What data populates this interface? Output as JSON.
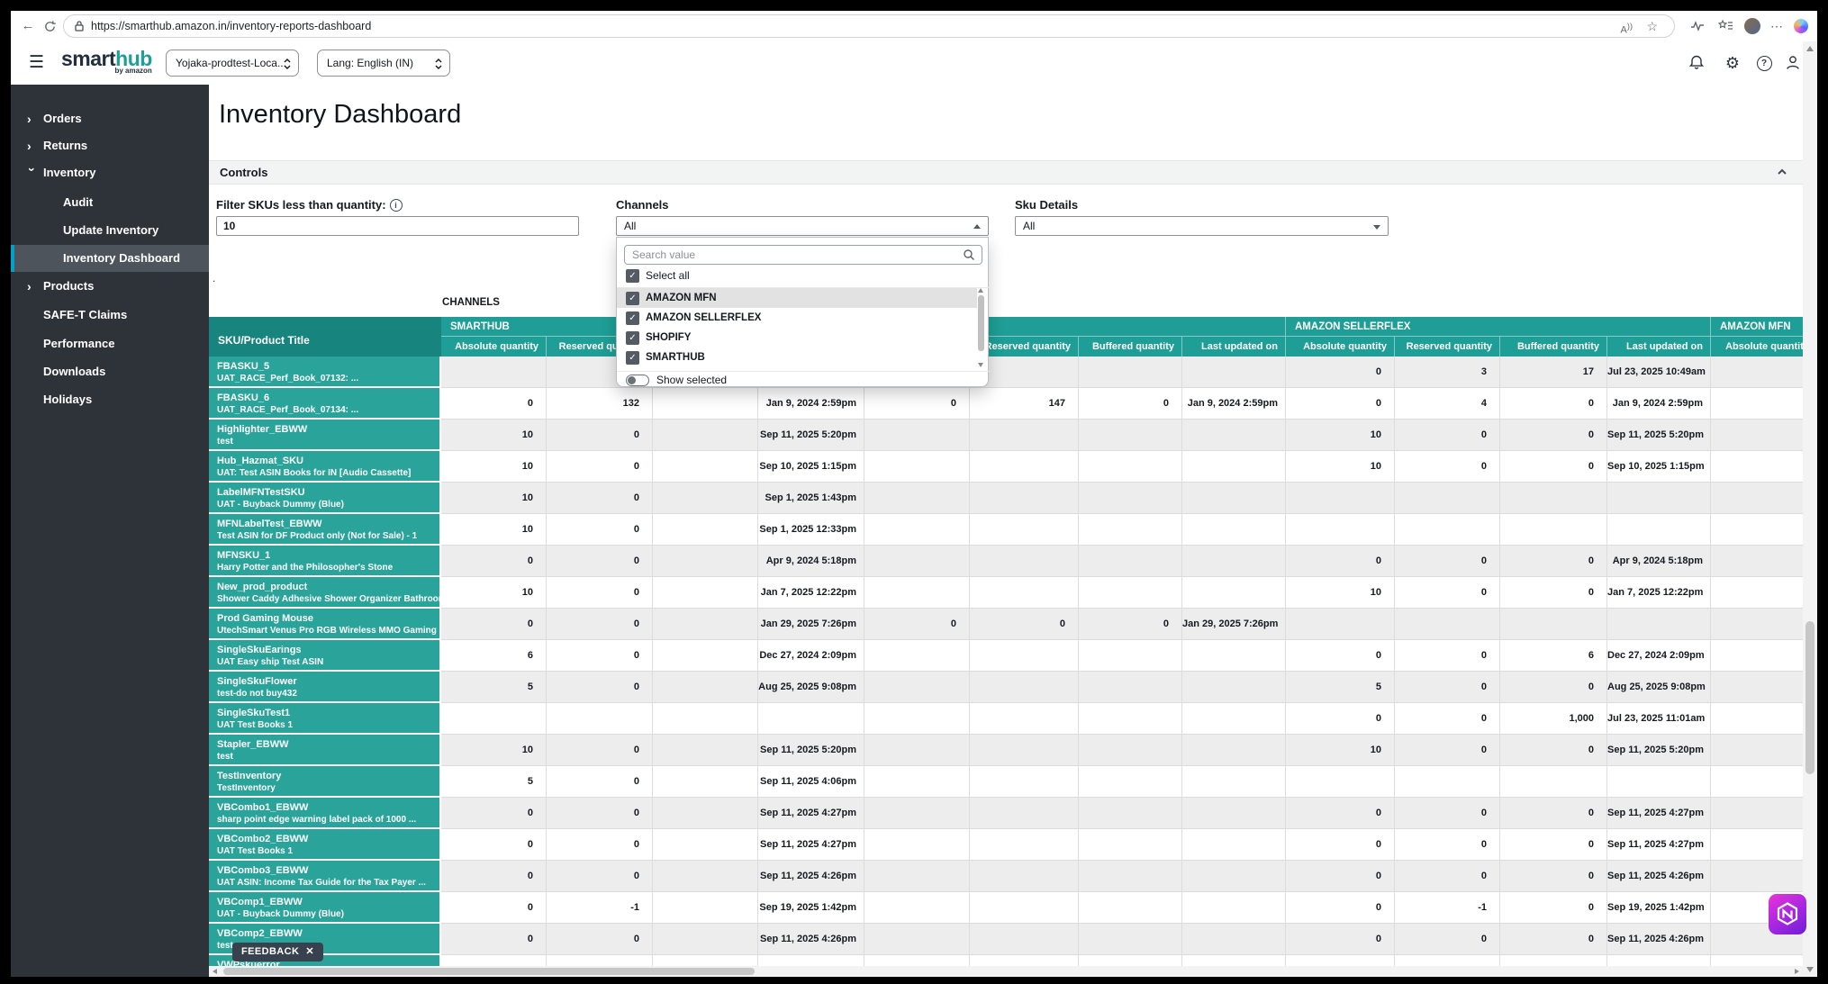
{
  "browser": {
    "url": "https://smarthub.amazon.in/inventory-reports-dashboard"
  },
  "app_header": {
    "logo": {
      "part1": "smart",
      "part2": "hub",
      "byline": "by amazon"
    },
    "account_selector": "Yojaka-prodtest-Loca...",
    "language_selector": "Lang: English (IN)"
  },
  "sidebar": {
    "items": [
      {
        "label": "Orders",
        "chevron": "collapsed",
        "level": 0,
        "selected": false
      },
      {
        "label": "Returns",
        "chevron": "collapsed",
        "level": 0,
        "selected": false
      },
      {
        "label": "Inventory",
        "chevron": "expanded",
        "level": 0,
        "selected": false
      },
      {
        "label": "Audit",
        "chevron": "none",
        "level": 1,
        "selected": false
      },
      {
        "label": "Update Inventory",
        "chevron": "none",
        "level": 1,
        "selected": false
      },
      {
        "label": "Inventory Dashboard",
        "chevron": "none",
        "level": 1,
        "selected": true
      },
      {
        "label": "Products",
        "chevron": "collapsed",
        "level": 0,
        "selected": false
      },
      {
        "label": "SAFE-T Claims",
        "chevron": "none",
        "level": 0,
        "selected": false
      },
      {
        "label": "Performance",
        "chevron": "none",
        "level": 0,
        "selected": false
      },
      {
        "label": "Downloads",
        "chevron": "none",
        "level": 0,
        "selected": false
      },
      {
        "label": "Holidays",
        "chevron": "none",
        "level": 0,
        "selected": false
      }
    ]
  },
  "page": {
    "title": "Inventory Dashboard"
  },
  "controls": {
    "section_label": "Controls",
    "filter": {
      "label": "Filter SKUs less than quantity:",
      "value": "10"
    },
    "channels": {
      "label": "Channels",
      "value": "All",
      "dropdown": {
        "search_placeholder": "Search value",
        "select_all_label": "Select all",
        "options": [
          {
            "label": "AMAZON MFN",
            "checked": true,
            "highlighted": true
          },
          {
            "label": "AMAZON SELLERFLEX",
            "checked": true,
            "highlighted": false
          },
          {
            "label": "SHOPIFY",
            "checked": true,
            "highlighted": false
          },
          {
            "label": "SMARTHUB",
            "checked": true,
            "highlighted": false
          }
        ],
        "show_selected_label": "Show selected",
        "show_selected_on": false
      }
    },
    "sku_details": {
      "label": "Sku Details",
      "value": "All"
    }
  },
  "table": {
    "caption": "CHANNELS",
    "sku_header": "SKU/Product Title",
    "groups": [
      {
        "key": "smarthub",
        "label": "SMARTHUB"
      },
      {
        "key": "shopify",
        "label": ""
      },
      {
        "key": "sellerflex",
        "label": "AMAZON SELLERFLEX"
      },
      {
        "key": "amazon_mfn",
        "label": "AMAZON MFN"
      }
    ],
    "quantity_headers": [
      "Absolute quantity",
      "Reserved quantity",
      "Buffered quantity",
      "Last updated on"
    ],
    "rows": [
      {
        "sku": "FBASKU_5",
        "title": "UAT_RACE_Perf_Book_07132: ...",
        "cells": {
          "smarthub": [
            "",
            "",
            "",
            ""
          ],
          "shopify": [
            "",
            "",
            "",
            ""
          ],
          "sellerflex": [
            "0",
            "3",
            "17",
            "Jul 23, 2025 10:49am"
          ],
          "amazon_mfn": [
            ""
          ]
        }
      },
      {
        "sku": "FBASKU_6",
        "title": "UAT_RACE_Perf_Book_07134: ...",
        "cells": {
          "smarthub": [
            "0",
            "132",
            "",
            "Jan 9, 2024 2:59pm"
          ],
          "shopify": [
            "0",
            "147",
            "0",
            "Jan 9, 2024 2:59pm"
          ],
          "sellerflex": [
            "0",
            "4",
            "0",
            "Jan 9, 2024 2:59pm"
          ],
          "amazon_mfn": [
            ""
          ]
        }
      },
      {
        "sku": "Highlighter_EBWW",
        "title": "test",
        "cells": {
          "smarthub": [
            "10",
            "0",
            "",
            "Sep 11, 2025 5:20pm"
          ],
          "shopify": [
            "",
            "",
            "",
            ""
          ],
          "sellerflex": [
            "10",
            "0",
            "0",
            "Sep 11, 2025 5:20pm"
          ],
          "amazon_mfn": [
            ""
          ]
        }
      },
      {
        "sku": "Hub_Hazmat_SKU",
        "title": "UAT: Test ASIN Books for IN [Audio Cassette]",
        "cells": {
          "smarthub": [
            "10",
            "0",
            "",
            "Sep 10, 2025 1:15pm"
          ],
          "shopify": [
            "",
            "",
            "",
            ""
          ],
          "sellerflex": [
            "10",
            "0",
            "0",
            "Sep 10, 2025 1:15pm"
          ],
          "amazon_mfn": [
            ""
          ]
        }
      },
      {
        "sku": "LabelMFNTestSKU",
        "title": "UAT - Buyback Dummy (Blue)",
        "cells": {
          "smarthub": [
            "10",
            "0",
            "",
            "Sep 1, 2025 1:43pm"
          ],
          "shopify": [
            "",
            "",
            "",
            ""
          ],
          "sellerflex": [
            "",
            "",
            "",
            ""
          ],
          "amazon_mfn": [
            ""
          ]
        }
      },
      {
        "sku": "MFNLabelTest_EBWW",
        "title": "Test ASIN for DF Product only (Not for Sale) - 1",
        "cells": {
          "smarthub": [
            "10",
            "0",
            "",
            "Sep 1, 2025 12:33pm"
          ],
          "shopify": [
            "",
            "",
            "",
            ""
          ],
          "sellerflex": [
            "",
            "",
            "",
            ""
          ],
          "amazon_mfn": [
            ""
          ]
        }
      },
      {
        "sku": "MFNSKU_1",
        "title": "Harry Potter and the Philosopher's Stone",
        "cells": {
          "smarthub": [
            "0",
            "0",
            "",
            "Apr 9, 2024 5:18pm"
          ],
          "shopify": [
            "",
            "",
            "",
            ""
          ],
          "sellerflex": [
            "0",
            "0",
            "0",
            "Apr 9, 2024 5:18pm"
          ],
          "amazon_mfn": [
            ""
          ]
        }
      },
      {
        "sku": "New_prod_product",
        "title": "Shower Caddy Adhesive Shower Organizer Bathroom...",
        "cells": {
          "smarthub": [
            "10",
            "0",
            "",
            "Jan 7, 2025 12:22pm"
          ],
          "shopify": [
            "",
            "",
            "",
            ""
          ],
          "sellerflex": [
            "10",
            "0",
            "0",
            "Jan 7, 2025 12:22pm"
          ],
          "amazon_mfn": [
            ""
          ]
        }
      },
      {
        "sku": "Prod Gaming Mouse",
        "title": "UtechSmart Venus Pro RGB Wireless MMO Gaming ...",
        "cells": {
          "smarthub": [
            "0",
            "0",
            "",
            "Jan 29, 2025 7:26pm"
          ],
          "shopify": [
            "0",
            "0",
            "0",
            "Jan 29, 2025 7:26pm"
          ],
          "sellerflex": [
            "",
            "",
            "",
            ""
          ],
          "amazon_mfn": [
            ""
          ]
        }
      },
      {
        "sku": "SingleSkuEarings",
        "title": "UAT Easy ship Test ASIN",
        "cells": {
          "smarthub": [
            "6",
            "0",
            "",
            "Dec 27, 2024 2:09pm"
          ],
          "shopify": [
            "",
            "",
            "",
            ""
          ],
          "sellerflex": [
            "0",
            "0",
            "6",
            "Dec 27, 2024 2:09pm"
          ],
          "amazon_mfn": [
            ""
          ]
        }
      },
      {
        "sku": "SingleSkuFlower",
        "title": "test-do not buy432",
        "cells": {
          "smarthub": [
            "5",
            "0",
            "",
            "Aug 25, 2025 9:08pm"
          ],
          "shopify": [
            "",
            "",
            "",
            ""
          ],
          "sellerflex": [
            "5",
            "0",
            "0",
            "Aug 25, 2025 9:08pm"
          ],
          "amazon_mfn": [
            ""
          ]
        }
      },
      {
        "sku": "SingleSkuTest1",
        "title": "UAT Test Books 1",
        "cells": {
          "smarthub": [
            "",
            "",
            "",
            ""
          ],
          "shopify": [
            "",
            "",
            "",
            ""
          ],
          "sellerflex": [
            "0",
            "0",
            "1,000",
            "Jul 23, 2025 11:01am"
          ],
          "amazon_mfn": [
            ""
          ]
        }
      },
      {
        "sku": "Stapler_EBWW",
        "title": "test",
        "cells": {
          "smarthub": [
            "10",
            "0",
            "",
            "Sep 11, 2025 5:20pm"
          ],
          "shopify": [
            "",
            "",
            "",
            ""
          ],
          "sellerflex": [
            "10",
            "0",
            "0",
            "Sep 11, 2025 5:20pm"
          ],
          "amazon_mfn": [
            ""
          ]
        }
      },
      {
        "sku": "TestInventory",
        "title": "TestInventory",
        "cells": {
          "smarthub": [
            "5",
            "0",
            "",
            "Sep 11, 2025 4:06pm"
          ],
          "shopify": [
            "",
            "",
            "",
            ""
          ],
          "sellerflex": [
            "",
            "",
            "",
            ""
          ],
          "amazon_mfn": [
            ""
          ]
        }
      },
      {
        "sku": "VBCombo1_EBWW",
        "title": "sharp point edge warning label pack of 1000 ...",
        "cells": {
          "smarthub": [
            "0",
            "0",
            "",
            "Sep 11, 2025 4:27pm"
          ],
          "shopify": [
            "",
            "",
            "",
            ""
          ],
          "sellerflex": [
            "0",
            "0",
            "0",
            "Sep 11, 2025 4:27pm"
          ],
          "amazon_mfn": [
            ""
          ]
        }
      },
      {
        "sku": "VBCombo2_EBWW",
        "title": "UAT Test Books 1",
        "cells": {
          "smarthub": [
            "0",
            "0",
            "",
            "Sep 11, 2025 4:27pm"
          ],
          "shopify": [
            "",
            "",
            "",
            ""
          ],
          "sellerflex": [
            "0",
            "0",
            "0",
            "Sep 11, 2025 4:27pm"
          ],
          "amazon_mfn": [
            ""
          ]
        }
      },
      {
        "sku": "VBCombo3_EBWW",
        "title": "UAT ASIN: Income Tax Guide for the Tax Payer ...",
        "cells": {
          "smarthub": [
            "0",
            "0",
            "",
            "Sep 11, 2025 4:26pm"
          ],
          "shopify": [
            "",
            "",
            "",
            ""
          ],
          "sellerflex": [
            "0",
            "0",
            "0",
            "Sep 11, 2025 4:26pm"
          ],
          "amazon_mfn": [
            ""
          ]
        }
      },
      {
        "sku": "VBComp1_EBWW",
        "title": "UAT - Buyback Dummy (Blue)",
        "cells": {
          "smarthub": [
            "0",
            "-1",
            "",
            "Sep 19, 2025 1:42pm"
          ],
          "shopify": [
            "",
            "",
            "",
            ""
          ],
          "sellerflex": [
            "0",
            "-1",
            "0",
            "Sep 19, 2025 1:42pm"
          ],
          "amazon_mfn": [
            ""
          ]
        }
      },
      {
        "sku": "VBComp2_EBWW",
        "title": "test-",
        "cells": {
          "smarthub": [
            "0",
            "0",
            "",
            "Sep 11, 2025 4:26pm"
          ],
          "shopify": [
            "",
            "",
            "",
            ""
          ],
          "sellerflex": [
            "0",
            "0",
            "0",
            "Sep 11, 2025 4:26pm"
          ],
          "amazon_mfn": [
            ""
          ]
        }
      },
      {
        "sku": "VWPskuerror",
        "title": "",
        "cells": {
          "smarthub": [
            "",
            "",
            "",
            ""
          ],
          "shopify": [
            "",
            "",
            "",
            ""
          ],
          "sellerflex": [
            "",
            "",
            "",
            ""
          ],
          "amazon_mfn": [
            ""
          ]
        }
      }
    ]
  },
  "feedback": {
    "label": "FEEDBACK",
    "close_icon": "✕"
  },
  "icons": {
    "back": "left-arrow",
    "refresh": "circular-arrow",
    "lock": "padlock",
    "read_aloud": "A)",
    "bookmark_star": "☆",
    "browser_essentials": "pulse-line",
    "favorites_bar": "star-with-lines",
    "profile": "avatar-photo",
    "more": "⋯",
    "copilot": "color-swirl",
    "hamburger": "≡",
    "notifications": "bell",
    "settings": "gear",
    "help": "question-circle",
    "account": "person",
    "info": "i-circle",
    "search": "magnifier",
    "collapse": "chevron-up",
    "channels_open": "triangle-up",
    "sku_closed": "triangle-down",
    "feedback_close": "✕",
    "extension": "purple-hexagon"
  },
  "colors": {
    "teal_header": "#1e9e96",
    "teal_header_dark": "#17857e",
    "teal_cell": "#2aa49b",
    "sidebar_bg": "#2d3338",
    "sidebar_selected": "#4d545c",
    "sidebar_accent": "#00a1c9",
    "row_alt": "#ededed",
    "feedback_bg": "#37424e",
    "extension_purple_start": "#e935d8",
    "extension_purple_end": "#6d1fd6"
  }
}
